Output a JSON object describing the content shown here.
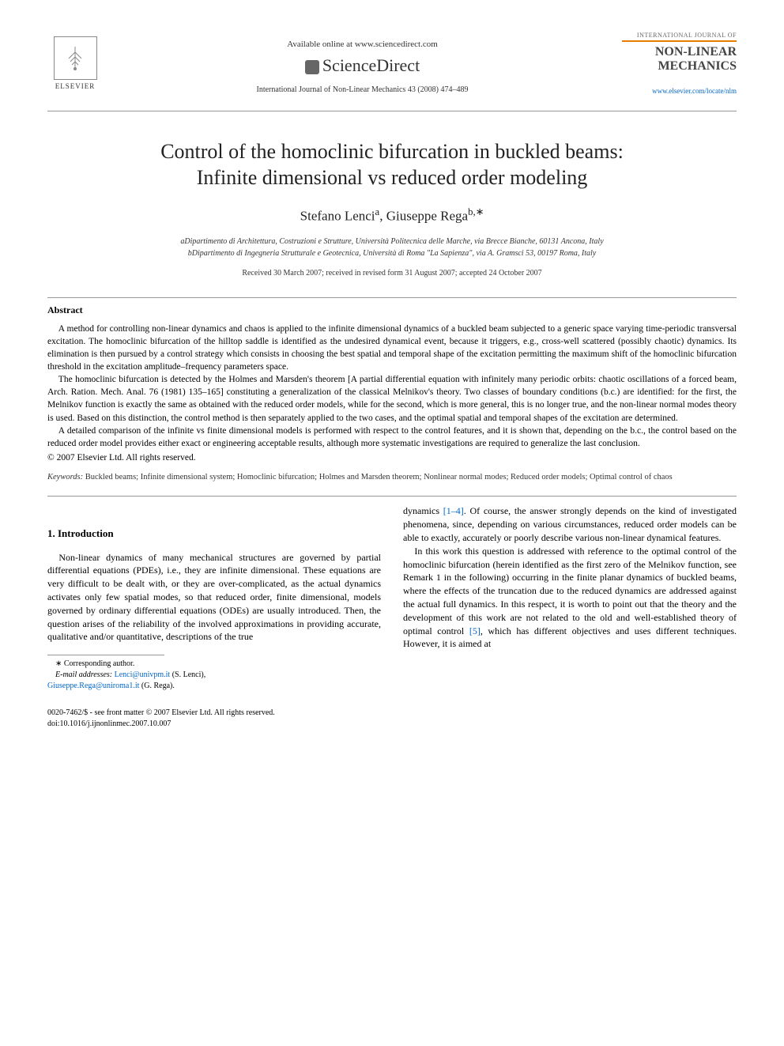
{
  "header": {
    "publisher_logo_text": "ELSEVIER",
    "available_text": "Available online at www.sciencedirect.com",
    "sciencedirect_text": "ScienceDirect",
    "journal_ref": "International Journal of Non-Linear Mechanics 43 (2008) 474–489",
    "journal_box_label": "INTERNATIONAL JOURNAL OF",
    "journal_box_name_1": "NON-LINEAR",
    "journal_box_name_2": "MECHANICS",
    "journal_link": "www.elsevier.com/locate/nlm"
  },
  "title_line1": "Control of the homoclinic bifurcation in buckled beams:",
  "title_line2": "Infinite dimensional vs reduced order modeling",
  "authors_html": "Stefano Lenci<sup>a</sup>, Giuseppe Rega<sup>b,∗</sup>",
  "affiliations": {
    "a": "aDipartimento di Architettura, Costruzioni e Strutture, Università Politecnica delle Marche, via Brecce Bianche, 60131 Ancona, Italy",
    "b": "bDipartimento di Ingegneria Strutturale e Geotecnica, Università di Roma \"La Sapienza\", via A. Gramsci 53, 00197 Roma, Italy"
  },
  "dates": "Received 30 March 2007; received in revised form 31 August 2007; accepted 24 October 2007",
  "abstract": {
    "heading": "Abstract",
    "p1": "A method for controlling non-linear dynamics and chaos is applied to the infinite dimensional dynamics of a buckled beam subjected to a generic space varying time-periodic transversal excitation. The homoclinic bifurcation of the hilltop saddle is identified as the undesired dynamical event, because it triggers, e.g., cross-well scattered (possibly chaotic) dynamics. Its elimination is then pursued by a control strategy which consists in choosing the best spatial and temporal shape of the excitation permitting the maximum shift of the homoclinic bifurcation threshold in the excitation amplitude–frequency parameters space.",
    "p2": "The homoclinic bifurcation is detected by the Holmes and Marsden's theorem [A partial differential equation with infinitely many periodic orbits: chaotic oscillations of a forced beam, Arch. Ration. Mech. Anal. 76 (1981) 135–165] constituting a generalization of the classical Melnikov's theory. Two classes of boundary conditions (b.c.) are identified: for the first, the Melnikov function is exactly the same as obtained with the reduced order models, while for the second, which is more general, this is no longer true, and the non-linear normal modes theory is used. Based on this distinction, the control method is then separately applied to the two cases, and the optimal spatial and temporal shapes of the excitation are determined.",
    "p3": "A detailed comparison of the infinite vs finite dimensional models is performed with respect to the control features, and it is shown that, depending on the b.c., the control based on the reduced order model provides either exact or engineering acceptable results, although more systematic investigations are required to generalize the last conclusion.",
    "copyright": "© 2007 Elsevier Ltd. All rights reserved."
  },
  "keywords": {
    "label": "Keywords:",
    "text": " Buckled beams; Infinite dimensional system; Homoclinic bifurcation; Holmes and Marsden theorem; Nonlinear normal modes; Reduced order models; Optimal control of chaos"
  },
  "section1": {
    "heading": "1. Introduction",
    "left_p1": "Non-linear dynamics of many mechanical structures are governed by partial differential equations (PDEs), i.e., they are infinite dimensional. These equations are very difficult to be dealt with, or they are over-complicated, as the actual dynamics activates only few spatial modes, so that reduced order, finite dimensional, models governed by ordinary differential equations (ODEs) are usually introduced. Then, the question arises of the reliability of the involved approximations in providing accurate, qualitative and/or quantitative, descriptions of the true",
    "right_p1_pre": "dynamics ",
    "right_p1_ref": "[1–4]",
    "right_p1_post": ". Of course, the answer strongly depends on the kind of investigated phenomena, since, depending on various circumstances, reduced order models can be able to exactly, accurately or poorly describe various non-linear dynamical features.",
    "right_p2_pre": "In this work this question is addressed with reference to the optimal control of the homoclinic bifurcation (herein identified as the first zero of the Melnikov function, see Remark 1 in the following) occurring in the finite planar dynamics of buckled beams, where the effects of the truncation due to the reduced dynamics are addressed against the actual full dynamics. In this respect, it is worth to point out that the theory and the development of this work are not related to the old and well-established theory of optimal control ",
    "right_p2_ref": "[5]",
    "right_p2_post": ", which has different objectives and uses different techniques. However, it is aimed at"
  },
  "footnote": {
    "corresponding": "∗ Corresponding author.",
    "email_label": "E-mail addresses:",
    "email1": "Lenci@univpm.it",
    "email1_name": " (S. Lenci),",
    "email2": "Giuseppe.Rega@uniroma1.it",
    "email2_name": " (G. Rega)."
  },
  "footer": {
    "line1": "0020-7462/$ - see front matter © 2007 Elsevier Ltd. All rights reserved.",
    "line2": "doi:10.1016/j.ijnonlinmec.2007.10.007"
  },
  "colors": {
    "link": "#0066cc",
    "journal_accent": "#e67e00",
    "rule": "#999999",
    "text": "#000000"
  }
}
